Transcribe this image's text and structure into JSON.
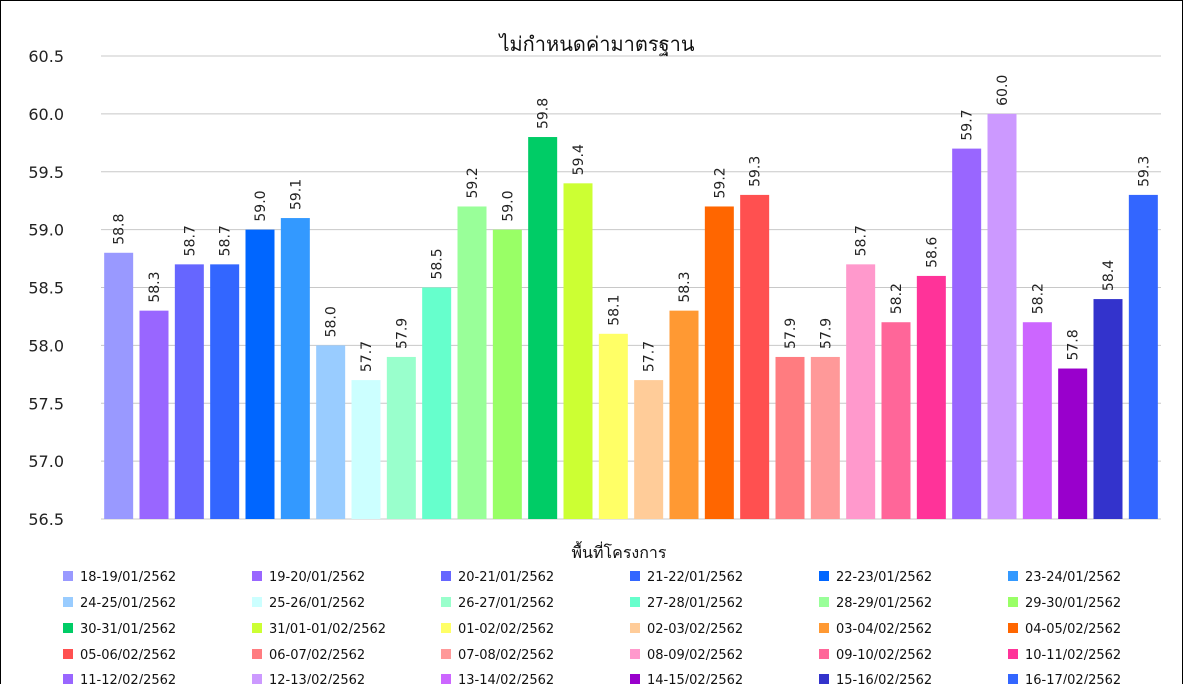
{
  "chart_data": {
    "type": "bar",
    "title": "ไม่กำหนดค่ามาตรฐาน",
    "xlabel": "พื้นที่โครงการ",
    "ylabel": "",
    "ylim": [
      56.5,
      60.5
    ],
    "yticks": [
      "56.5",
      "57.0",
      "57.5",
      "58.0",
      "58.5",
      "59.0",
      "59.5",
      "60.0",
      "60.5"
    ],
    "grid": true,
    "legend_position": "bottom",
    "series": [
      {
        "name": "18-19/01/2562",
        "value": 58.8,
        "label": "58.8",
        "color": "#9999ff"
      },
      {
        "name": "19-20/01/2562",
        "value": 58.3,
        "label": "58.3",
        "color": "#9966ff"
      },
      {
        "name": "20-21/01/2562",
        "value": 58.7,
        "label": "58.7",
        "color": "#6666ff"
      },
      {
        "name": "21-22/01/2562",
        "value": 58.7,
        "label": "58.7",
        "color": "#3366ff"
      },
      {
        "name": "22-23/01/2562",
        "value": 59.0,
        "label": "59.0",
        "color": "#0066ff"
      },
      {
        "name": "23-24/01/2562",
        "value": 59.1,
        "label": "59.1",
        "color": "#3399ff"
      },
      {
        "name": "24-25/01/2562",
        "value": 58.0,
        "label": "58.0",
        "color": "#99ccff"
      },
      {
        "name": "25-26/01/2562",
        "value": 57.7,
        "label": "57.7",
        "color": "#ccffff"
      },
      {
        "name": "26-27/01/2562",
        "value": 57.9,
        "label": "57.9",
        "color": "#99ffcc"
      },
      {
        "name": "27-28/01/2562",
        "value": 58.5,
        "label": "58.5",
        "color": "#66ffcc"
      },
      {
        "name": "28-29/01/2562",
        "value": 59.2,
        "label": "59.2",
        "color": "#99ff99"
      },
      {
        "name": "29-30/01/2562",
        "value": 59.0,
        "label": "59.0",
        "color": "#99ff66"
      },
      {
        "name": "30-31/01/2562",
        "value": 59.8,
        "label": "59.8",
        "color": "#00cc66"
      },
      {
        "name": "31/01-01/02/2562",
        "value": 59.4,
        "label": "59.4",
        "color": "#ccff33"
      },
      {
        "name": "01-02/02/2562",
        "value": 58.1,
        "label": "58.1",
        "color": "#ffff66"
      },
      {
        "name": "02-03/02/2562",
        "value": 57.7,
        "label": "57.7",
        "color": "#ffcc99"
      },
      {
        "name": "03-04/02/2562",
        "value": 58.3,
        "label": "58.3",
        "color": "#ff9933"
      },
      {
        "name": "04-05/02/2562",
        "value": 59.2,
        "label": "59.2",
        "color": "#ff6600"
      },
      {
        "name": "05-06/02/2562",
        "value": 59.3,
        "label": "59.3",
        "color": "#ff5050"
      },
      {
        "name": "06-07/02/2562",
        "value": 57.9,
        "label": "57.9",
        "color": "#ff7c80"
      },
      {
        "name": "07-08/02/2562",
        "value": 57.9,
        "label": "57.9",
        "color": "#ff9999"
      },
      {
        "name": "08-09/02/2562",
        "value": 58.7,
        "label": "58.7",
        "color": "#ff99cc"
      },
      {
        "name": "09-10/02/2562",
        "value": 58.2,
        "label": "58.2",
        "color": "#ff6699"
      },
      {
        "name": "10-11/02/2562",
        "value": 58.6,
        "label": "58.6",
        "color": "#ff3399"
      },
      {
        "name": "11-12/02/2562",
        "value": 59.7,
        "label": "59.7",
        "color": "#9966ff"
      },
      {
        "name": "12-13/02/2562",
        "value": 60.0,
        "label": "60.0",
        "color": "#cc99ff"
      },
      {
        "name": "13-14/02/2562",
        "value": 58.2,
        "label": "58.2",
        "color": "#cc66ff"
      },
      {
        "name": "14-15/02/2562",
        "value": 57.8,
        "label": "57.8",
        "color": "#9900cc"
      },
      {
        "name": "15-16/02/2562",
        "value": 58.4,
        "label": "58.4",
        "color": "#3333cc"
      },
      {
        "name": "16-17/02/2562",
        "value": 59.3,
        "label": "59.3",
        "color": "#3366ff"
      }
    ]
  }
}
